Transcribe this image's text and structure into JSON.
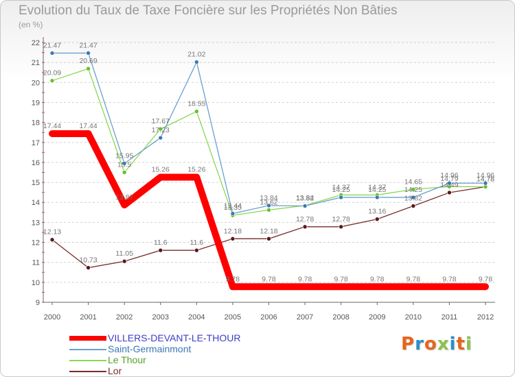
{
  "header": {
    "title": "Evolution du Taux de Taxe Foncière sur les Propriétés Non Bâties",
    "subtitle": "(en %)"
  },
  "logo_text": "Proxiti",
  "logo_colors": [
    "#e8641b",
    "#2a8fc8",
    "#e8641b",
    "#8bc34a",
    "#2a8fc8",
    "#e8641b",
    "#8bc34a"
  ],
  "chart_data": {
    "type": "line",
    "title": "Evolution du Taux de Taxe Foncière sur les Propriétés Non Bâties",
    "subtitle": "(en %)",
    "xlabel": "",
    "ylabel": "",
    "x": [
      "2000",
      "2001",
      "2002",
      "2003",
      "2004",
      "2005",
      "2006",
      "2007",
      "2008",
      "2009",
      "2010",
      "2011",
      "2012"
    ],
    "ylim": [
      9,
      22
    ],
    "yticks": [
      9,
      10,
      11,
      12,
      13,
      14,
      15,
      16,
      17,
      18,
      19,
      20,
      21,
      22
    ],
    "grid": "horizontal dashed",
    "legend_position": "bottom-left",
    "series": [
      {
        "name": "VILLERS-DEVANT-LE-THOUR",
        "color": "#ff0000",
        "style": "step-thick",
        "values": [
          17.44,
          17.44,
          13.87,
          15.26,
          15.26,
          9.78,
          9.78,
          9.78,
          9.78,
          9.78,
          9.78,
          9.78,
          9.78
        ],
        "labels": [
          "17.44",
          "17.44",
          "13.87",
          "15.26",
          "15.26",
          "9.78",
          "9.78",
          "9.78",
          "9.78",
          "9.78",
          "9.78",
          "9.78",
          "9.78"
        ]
      },
      {
        "name": "Saint-Germainmont",
        "color": "#6a9fd0",
        "marker": "#3c78b4",
        "values": [
          21.47,
          21.47,
          15.95,
          17.23,
          21.02,
          13.44,
          13.84,
          13.82,
          14.25,
          14.25,
          14.25,
          14.96,
          14.96
        ],
        "labels": [
          "21.47",
          "21.47",
          "15.95",
          "17.23",
          "21.02",
          "13.44",
          "13.84",
          "13.82",
          "14.25",
          "14.25",
          "14.25",
          "14.96",
          "14.96"
        ]
      },
      {
        "name": "Le Thour",
        "color": "#88d850",
        "marker": "#66c030",
        "values": [
          20.09,
          20.69,
          15.5,
          17.67,
          18.55,
          13.35,
          13.62,
          13.84,
          14.37,
          14.37,
          14.65,
          14.79,
          14.78
        ],
        "labels": [
          "20.09",
          "20.69",
          "15.5",
          "17.67",
          "18.55",
          "13.35",
          "13.62",
          "13.84",
          "14.37",
          "14.37",
          "14.65",
          "14.79",
          "14.78"
        ]
      },
      {
        "name": "Lor",
        "color": "#7a2a2a",
        "marker": "#5a1818",
        "values": [
          12.13,
          10.73,
          11.05,
          11.6,
          11.6,
          12.18,
          12.18,
          12.78,
          12.78,
          13.16,
          13.82,
          14.49,
          14.78
        ],
        "labels": [
          "12.13",
          "10.73",
          "11.05",
          "11.6",
          "11.6",
          "12.18",
          "12.18",
          "12.78",
          "12.78",
          "13.16",
          "13.82",
          "14.49",
          "14.78"
        ]
      }
    ]
  }
}
